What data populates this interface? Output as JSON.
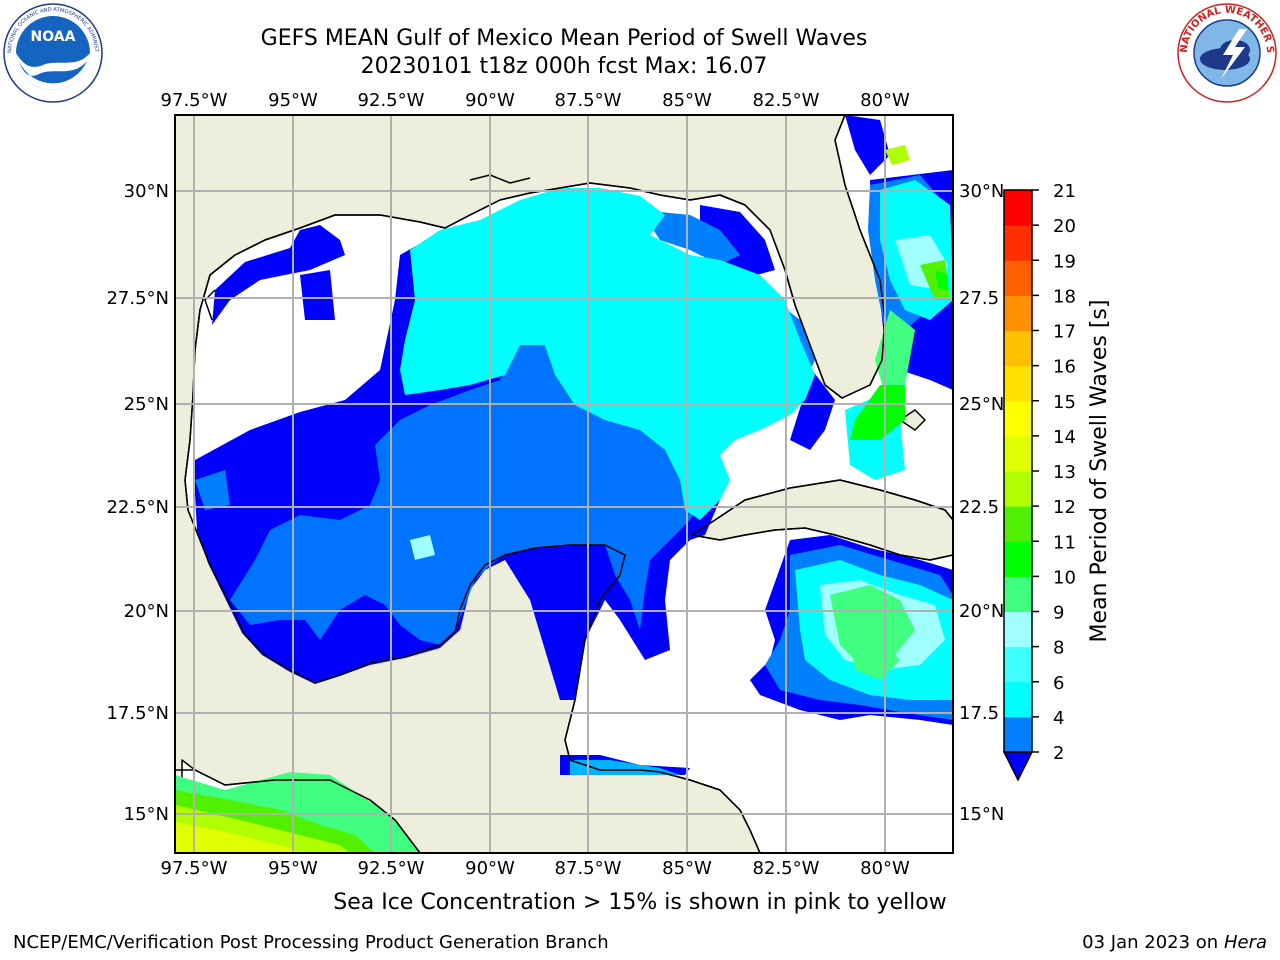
{
  "header": {
    "title": "GEFS MEAN Gulf of Mexico Mean Period of Swell Waves",
    "subtitle": "20230101 t18z 000h fcst   Max: 16.07"
  },
  "logos": {
    "left": "noaa-logo",
    "right": "national-weather-service-logo",
    "noaa_text": "NOAA",
    "noaa_ring": "NATIONAL OCEANIC AND ATMOSPHERIC ADMINISTRATION · U.S. DEPARTMENT OF COMMERCE",
    "nws_ring": "NATIONAL WEATHER SERVICE"
  },
  "map": {
    "lon_ticks": [
      "97.5°W",
      "95°W",
      "92.5°W",
      "90°W",
      "87.5°W",
      "85°W",
      "82.5°W",
      "80°W"
    ],
    "lat_ticks_left": [
      "30°N",
      "27.5°N",
      "25°N",
      "22.5°N",
      "20°N",
      "17.5°N",
      "15°N"
    ],
    "lat_ticks_right": [
      "30°N",
      "27.5",
      "25°N",
      "22.5",
      "20°N",
      "17.5",
      "15°N"
    ],
    "colors": {
      "land": "#eeeedc",
      "grid": "#b0b0b0",
      "coast": "#000000"
    }
  },
  "colorbar": {
    "label": "Mean Period of Swell Waves [s]",
    "ticks": [
      "2",
      "4",
      "6",
      "8",
      "9",
      "10",
      "11",
      "12",
      "13",
      "14",
      "15",
      "16",
      "17",
      "18",
      "19",
      "20",
      "21"
    ],
    "colors": [
      "#0000ff",
      "#0080ff",
      "#00ffff",
      "#40ffff",
      "#a0ffff",
      "#40ff80",
      "#00ff00",
      "#50f000",
      "#b0ff00",
      "#e0ff00",
      "#ffff00",
      "#ffe000",
      "#ffc000",
      "#ff9000",
      "#ff6000",
      "#ff3000",
      "#ff0000"
    ]
  },
  "footer": {
    "ice_note": "Sea Ice Concentration > 15% is shown in pink to yellow",
    "left": "NCEP/EMC/Verification Post Processing Product Generation Branch",
    "right_date": "03 Jan 2023 on ",
    "right_host": "Hera"
  }
}
